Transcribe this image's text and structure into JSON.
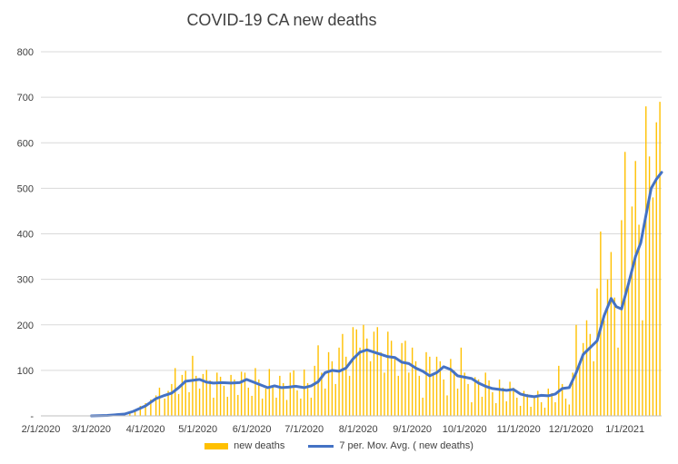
{
  "chart_data": {
    "type": "bar",
    "title": "COVID-19 CA new deaths",
    "xlabel": "",
    "ylabel": "",
    "ylim": [
      0,
      800
    ],
    "yticks": [
      0,
      100,
      200,
      300,
      400,
      500,
      600,
      700,
      800
    ],
    "ytick_labels": [
      "-",
      "100",
      "200",
      "300",
      "400",
      "500",
      "600",
      "700",
      "800"
    ],
    "xrange": [
      "2020-02-01",
      "2021-01-22"
    ],
    "xticks": [
      "2020-02-01",
      "2020-03-01",
      "2020-04-01",
      "2020-05-01",
      "2020-06-01",
      "2020-07-01",
      "2020-08-01",
      "2020-09-01",
      "2020-10-01",
      "2020-11-01",
      "2020-12-01",
      "2021-01-01"
    ],
    "xtick_labels": [
      "2/1/2020",
      "3/1/2020",
      "4/1/2020",
      "5/1/2020",
      "6/1/2020",
      "7/1/2020",
      "8/1/2020",
      "9/1/2020",
      "10/1/2020",
      "11/1/2020",
      "12/1/2020",
      "1/1/2021"
    ],
    "grid": true,
    "legend_position": "bottom",
    "bar_color": "#ffc000",
    "line_color": "#4472c4",
    "series": [
      {
        "name": "new deaths",
        "kind": "bar",
        "points": [
          [
            "2020-03-05",
            1
          ],
          [
            "2020-03-10",
            2
          ],
          [
            "2020-03-15",
            3
          ],
          [
            "2020-03-20",
            6
          ],
          [
            "2020-03-23",
            9
          ],
          [
            "2020-03-26",
            14
          ],
          [
            "2020-03-29",
            22
          ],
          [
            "2020-04-01",
            28
          ],
          [
            "2020-04-04",
            36
          ],
          [
            "2020-04-07",
            45
          ],
          [
            "2020-04-09",
            62
          ],
          [
            "2020-04-12",
            38
          ],
          [
            "2020-04-14",
            55
          ],
          [
            "2020-04-16",
            70
          ],
          [
            "2020-04-18",
            105
          ],
          [
            "2020-04-20",
            48
          ],
          [
            "2020-04-22",
            90
          ],
          [
            "2020-04-24",
            99
          ],
          [
            "2020-04-26",
            52
          ],
          [
            "2020-04-28",
            132
          ],
          [
            "2020-04-30",
            88
          ],
          [
            "2020-05-02",
            60
          ],
          [
            "2020-05-04",
            92
          ],
          [
            "2020-05-06",
            101
          ],
          [
            "2020-05-08",
            78
          ],
          [
            "2020-05-10",
            40
          ],
          [
            "2020-05-12",
            95
          ],
          [
            "2020-05-14",
            86
          ],
          [
            "2020-05-16",
            66
          ],
          [
            "2020-05-18",
            42
          ],
          [
            "2020-05-20",
            90
          ],
          [
            "2020-05-22",
            80
          ],
          [
            "2020-05-24",
            46
          ],
          [
            "2020-05-26",
            97
          ],
          [
            "2020-05-28",
            95
          ],
          [
            "2020-05-30",
            62
          ],
          [
            "2020-06-01",
            44
          ],
          [
            "2020-06-03",
            105
          ],
          [
            "2020-06-05",
            80
          ],
          [
            "2020-06-07",
            38
          ],
          [
            "2020-06-09",
            60
          ],
          [
            "2020-06-11",
            103
          ],
          [
            "2020-06-13",
            64
          ],
          [
            "2020-06-15",
            40
          ],
          [
            "2020-06-17",
            88
          ],
          [
            "2020-06-19",
            72
          ],
          [
            "2020-06-21",
            35
          ],
          [
            "2020-06-23",
            95
          ],
          [
            "2020-06-25",
            100
          ],
          [
            "2020-06-27",
            56
          ],
          [
            "2020-06-29",
            38
          ],
          [
            "2020-07-01",
            102
          ],
          [
            "2020-07-03",
            72
          ],
          [
            "2020-07-05",
            40
          ],
          [
            "2020-07-07",
            110
          ],
          [
            "2020-07-09",
            155
          ],
          [
            "2020-07-11",
            95
          ],
          [
            "2020-07-13",
            60
          ],
          [
            "2020-07-15",
            140
          ],
          [
            "2020-07-17",
            120
          ],
          [
            "2020-07-19",
            70
          ],
          [
            "2020-07-21",
            150
          ],
          [
            "2020-07-23",
            180
          ],
          [
            "2020-07-25",
            130
          ],
          [
            "2020-07-27",
            88
          ],
          [
            "2020-07-29",
            195
          ],
          [
            "2020-07-31",
            190
          ],
          [
            "2020-08-02",
            150
          ],
          [
            "2020-08-04",
            200
          ],
          [
            "2020-08-06",
            170
          ],
          [
            "2020-08-08",
            120
          ],
          [
            "2020-08-10",
            185
          ],
          [
            "2020-08-12",
            195
          ],
          [
            "2020-08-14",
            140
          ],
          [
            "2020-08-16",
            95
          ],
          [
            "2020-08-18",
            185
          ],
          [
            "2020-08-20",
            165
          ],
          [
            "2020-08-22",
            128
          ],
          [
            "2020-08-24",
            88
          ],
          [
            "2020-08-26",
            160
          ],
          [
            "2020-08-28",
            165
          ],
          [
            "2020-08-30",
            95
          ],
          [
            "2020-09-01",
            150
          ],
          [
            "2020-09-03",
            120
          ],
          [
            "2020-09-05",
            88
          ],
          [
            "2020-09-07",
            40
          ],
          [
            "2020-09-09",
            140
          ],
          [
            "2020-09-11",
            130
          ],
          [
            "2020-09-13",
            90
          ],
          [
            "2020-09-15",
            130
          ],
          [
            "2020-09-17",
            120
          ],
          [
            "2020-09-19",
            80
          ],
          [
            "2020-09-21",
            45
          ],
          [
            "2020-09-23",
            125
          ],
          [
            "2020-09-25",
            100
          ],
          [
            "2020-09-27",
            60
          ],
          [
            "2020-09-29",
            150
          ],
          [
            "2020-10-01",
            95
          ],
          [
            "2020-10-03",
            70
          ],
          [
            "2020-10-05",
            30
          ],
          [
            "2020-10-07",
            85
          ],
          [
            "2020-10-09",
            80
          ],
          [
            "2020-10-11",
            42
          ],
          [
            "2020-10-13",
            95
          ],
          [
            "2020-10-15",
            78
          ],
          [
            "2020-10-17",
            52
          ],
          [
            "2020-10-19",
            28
          ],
          [
            "2020-10-21",
            80
          ],
          [
            "2020-10-23",
            62
          ],
          [
            "2020-10-25",
            32
          ],
          [
            "2020-10-27",
            75
          ],
          [
            "2020-10-29",
            62
          ],
          [
            "2020-10-31",
            40
          ],
          [
            "2020-11-02",
            22
          ],
          [
            "2020-11-04",
            55
          ],
          [
            "2020-11-06",
            48
          ],
          [
            "2020-11-08",
            20
          ],
          [
            "2020-11-10",
            45
          ],
          [
            "2020-11-12",
            55
          ],
          [
            "2020-11-14",
            30
          ],
          [
            "2020-11-16",
            18
          ],
          [
            "2020-11-18",
            60
          ],
          [
            "2020-11-20",
            50
          ],
          [
            "2020-11-22",
            30
          ],
          [
            "2020-11-24",
            110
          ],
          [
            "2020-11-26",
            70
          ],
          [
            "2020-11-28",
            38
          ],
          [
            "2020-11-30",
            25
          ],
          [
            "2020-12-02",
            95
          ],
          [
            "2020-12-04",
            200
          ],
          [
            "2020-12-06",
            120
          ],
          [
            "2020-12-08",
            160
          ],
          [
            "2020-12-10",
            210
          ],
          [
            "2020-12-12",
            180
          ],
          [
            "2020-12-14",
            120
          ],
          [
            "2020-12-16",
            280
          ],
          [
            "2020-12-18",
            405
          ],
          [
            "2020-12-20",
            210
          ],
          [
            "2020-12-22",
            300
          ],
          [
            "2020-12-24",
            360
          ],
          [
            "2020-12-26",
            260
          ],
          [
            "2020-12-28",
            150
          ],
          [
            "2020-12-30",
            430
          ],
          [
            "2021-01-01",
            580
          ],
          [
            "2021-01-03",
            300
          ],
          [
            "2021-01-05",
            460
          ],
          [
            "2021-01-07",
            560
          ],
          [
            "2021-01-09",
            420
          ],
          [
            "2021-01-11",
            210
          ],
          [
            "2021-01-13",
            680
          ],
          [
            "2021-01-15",
            570
          ],
          [
            "2021-01-17",
            480
          ],
          [
            "2021-01-19",
            645
          ],
          [
            "2021-01-21",
            690
          ]
        ]
      },
      {
        "name": "7 per. Mov. Avg. ( new deaths)",
        "kind": "line",
        "points": [
          [
            "2020-03-01",
            0
          ],
          [
            "2020-03-10",
            1
          ],
          [
            "2020-03-20",
            4
          ],
          [
            "2020-03-25",
            10
          ],
          [
            "2020-04-01",
            22
          ],
          [
            "2020-04-07",
            38
          ],
          [
            "2020-04-12",
            45
          ],
          [
            "2020-04-16",
            50
          ],
          [
            "2020-04-20",
            62
          ],
          [
            "2020-04-24",
            76
          ],
          [
            "2020-04-28",
            78
          ],
          [
            "2020-05-02",
            80
          ],
          [
            "2020-05-06",
            74
          ],
          [
            "2020-05-10",
            72
          ],
          [
            "2020-05-15",
            73
          ],
          [
            "2020-05-20",
            72
          ],
          [
            "2020-05-25",
            73
          ],
          [
            "2020-05-29",
            80
          ],
          [
            "2020-06-02",
            74
          ],
          [
            "2020-06-06",
            68
          ],
          [
            "2020-06-10",
            62
          ],
          [
            "2020-06-14",
            66
          ],
          [
            "2020-06-18",
            62
          ],
          [
            "2020-06-22",
            63
          ],
          [
            "2020-06-26",
            65
          ],
          [
            "2020-07-01",
            62
          ],
          [
            "2020-07-05",
            66
          ],
          [
            "2020-07-09",
            75
          ],
          [
            "2020-07-13",
            95
          ],
          [
            "2020-07-17",
            100
          ],
          [
            "2020-07-21",
            98
          ],
          [
            "2020-07-25",
            105
          ],
          [
            "2020-07-29",
            125
          ],
          [
            "2020-08-02",
            140
          ],
          [
            "2020-08-06",
            145
          ],
          [
            "2020-08-10",
            140
          ],
          [
            "2020-08-14",
            135
          ],
          [
            "2020-08-18",
            130
          ],
          [
            "2020-08-22",
            128
          ],
          [
            "2020-08-26",
            118
          ],
          [
            "2020-08-30",
            115
          ],
          [
            "2020-09-03",
            105
          ],
          [
            "2020-09-07",
            98
          ],
          [
            "2020-09-11",
            88
          ],
          [
            "2020-09-15",
            95
          ],
          [
            "2020-09-19",
            108
          ],
          [
            "2020-09-23",
            102
          ],
          [
            "2020-09-27",
            88
          ],
          [
            "2020-10-01",
            85
          ],
          [
            "2020-10-05",
            82
          ],
          [
            "2020-10-09",
            72
          ],
          [
            "2020-10-13",
            65
          ],
          [
            "2020-10-17",
            60
          ],
          [
            "2020-10-21",
            58
          ],
          [
            "2020-10-25",
            56
          ],
          [
            "2020-10-29",
            58
          ],
          [
            "2020-11-02",
            48
          ],
          [
            "2020-11-06",
            44
          ],
          [
            "2020-11-10",
            42
          ],
          [
            "2020-11-14",
            45
          ],
          [
            "2020-11-18",
            44
          ],
          [
            "2020-11-22",
            48
          ],
          [
            "2020-11-26",
            60
          ],
          [
            "2020-11-30",
            62
          ],
          [
            "2020-12-04",
            95
          ],
          [
            "2020-12-08",
            135
          ],
          [
            "2020-12-12",
            150
          ],
          [
            "2020-12-16",
            165
          ],
          [
            "2020-12-20",
            220
          ],
          [
            "2020-12-24",
            258
          ],
          [
            "2020-12-27",
            240
          ],
          [
            "2020-12-30",
            235
          ],
          [
            "2021-01-03",
            290
          ],
          [
            "2021-01-07",
            350
          ],
          [
            "2021-01-10",
            380
          ],
          [
            "2021-01-13",
            440
          ],
          [
            "2021-01-16",
            500
          ],
          [
            "2021-01-19",
            520
          ],
          [
            "2021-01-22",
            535
          ]
        ]
      }
    ]
  }
}
